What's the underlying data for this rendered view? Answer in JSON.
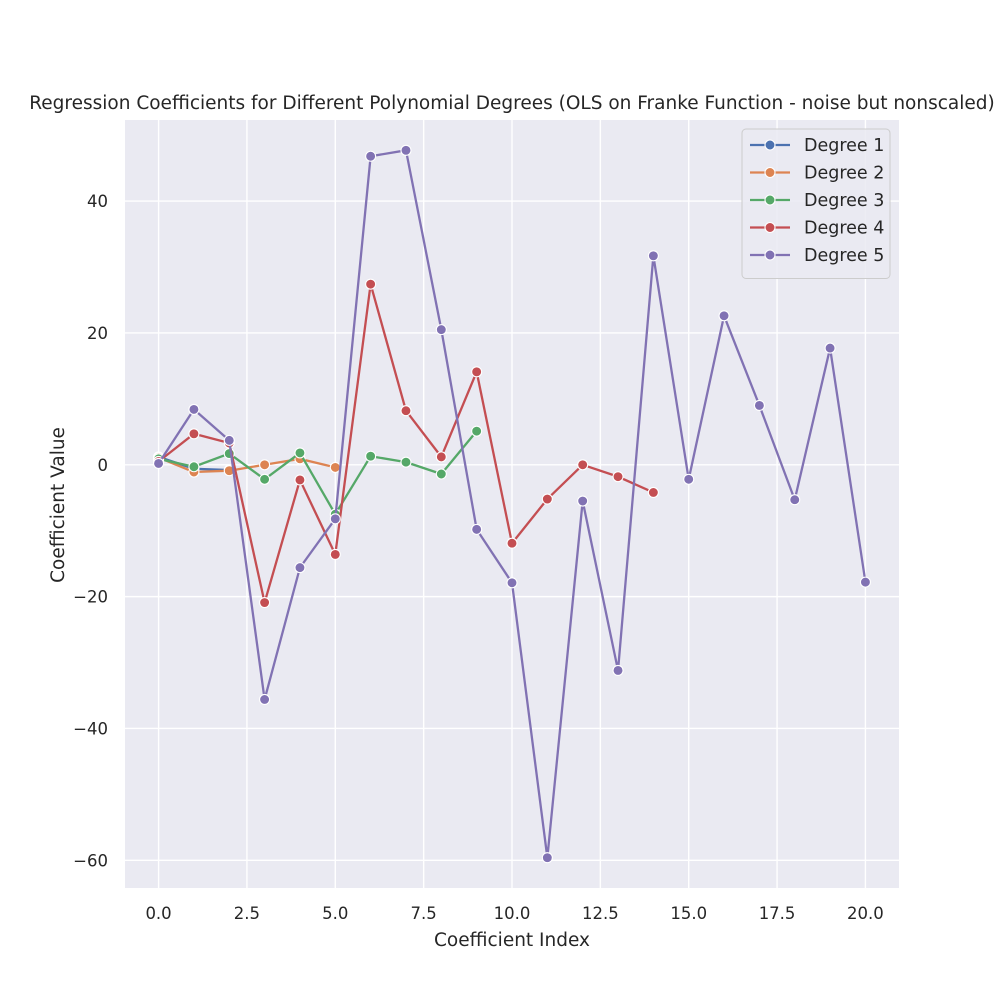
{
  "chart_data": {
    "type": "line",
    "title": "Regression Coefficients for Different Polynomial Degrees (OLS on Franke Function - noise but nonscaled)",
    "xlabel": "Coefficient Index",
    "ylabel": "Coefficient Value",
    "xlim": [
      -0.95,
      20.95
    ],
    "ylim": [
      -64.2,
      52.3
    ],
    "xticks": [
      0.0,
      2.5,
      5.0,
      7.5,
      10.0,
      12.5,
      15.0,
      17.5,
      20.0
    ],
    "xtick_labels": [
      "0.0",
      "2.5",
      "5.0",
      "7.5",
      "10.0",
      "12.5",
      "15.0",
      "17.5",
      "20.0"
    ],
    "yticks": [
      -60,
      -40,
      -20,
      0,
      20,
      40
    ],
    "ytick_labels": [
      "−60",
      "−40",
      "−20",
      "0",
      "20",
      "40"
    ],
    "grid": true,
    "legend_position": "top-right",
    "series": [
      {
        "name": "Degree 1",
        "color": "#4c72b0",
        "x": [
          0,
          1,
          2
        ],
        "y": [
          1.2,
          -0.6,
          -0.8
        ]
      },
      {
        "name": "Degree 2",
        "color": "#dd8452",
        "x": [
          0,
          1,
          2,
          3,
          4,
          5
        ],
        "y": [
          1.1,
          -1.1,
          -0.9,
          0.0,
          0.9,
          -0.4
        ]
      },
      {
        "name": "Degree 3",
        "color": "#55a868",
        "x": [
          0,
          1,
          2,
          3,
          4,
          5,
          6,
          7,
          8,
          9
        ],
        "y": [
          0.9,
          -0.3,
          1.7,
          -2.2,
          1.8,
          -7.5,
          1.3,
          0.4,
          -1.4,
          5.1
        ]
      },
      {
        "name": "Degree 4",
        "color": "#c44e52",
        "x": [
          0,
          1,
          2,
          3,
          4,
          5,
          6,
          7,
          8,
          9,
          10,
          11,
          12,
          13,
          14
        ],
        "y": [
          0.5,
          4.7,
          3.3,
          -20.9,
          -2.3,
          -13.6,
          27.4,
          8.2,
          1.2,
          14.1,
          -11.9,
          -5.2,
          0.0,
          -1.8,
          -4.2
        ]
      },
      {
        "name": "Degree 5",
        "color": "#8172b3",
        "x": [
          0,
          1,
          2,
          3,
          4,
          5,
          6,
          7,
          8,
          9,
          10,
          11,
          12,
          13,
          14,
          15,
          16,
          17,
          18,
          19,
          20
        ],
        "y": [
          0.2,
          8.4,
          3.7,
          -35.6,
          -15.6,
          -8.2,
          46.8,
          47.7,
          20.5,
          -9.8,
          -17.9,
          -59.6,
          -5.5,
          -31.2,
          31.7,
          -2.2,
          22.6,
          9.0,
          -5.3,
          17.7,
          -17.8
        ]
      }
    ]
  }
}
